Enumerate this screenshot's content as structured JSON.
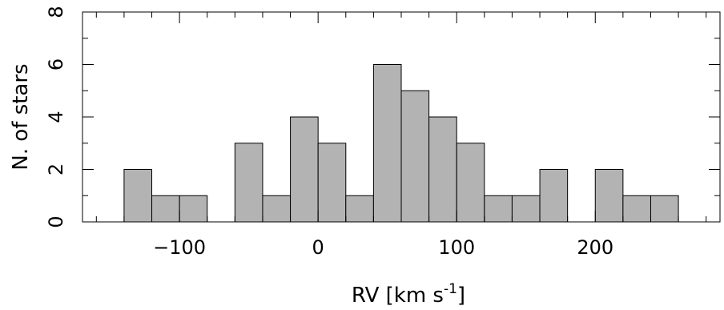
{
  "chart_data": {
    "type": "bar",
    "bin_edges": [
      -140,
      -120,
      -100,
      -80,
      -60,
      -40,
      -20,
      0,
      20,
      40,
      60,
      80,
      100,
      120,
      140,
      160,
      180,
      200,
      220,
      240,
      260
    ],
    "values": [
      2,
      1,
      1,
      0,
      3,
      1,
      4,
      3,
      1,
      6,
      5,
      4,
      3,
      1,
      1,
      2,
      0,
      2,
      1,
      1
    ],
    "xlim": [
      -170,
      290
    ],
    "ylim": [
      0,
      8
    ],
    "x_ticks": [
      "-100",
      "0",
      "100",
      "200"
    ],
    "y_ticks": [
      "0",
      "2",
      "4",
      "6",
      "8"
    ],
    "xlabel": "RV [km s",
    "xlabel_sup": "-1",
    "xlabel_close": "]",
    "ylabel": "N. of stars",
    "grid": false,
    "bar_color": "#b3b3b3"
  }
}
